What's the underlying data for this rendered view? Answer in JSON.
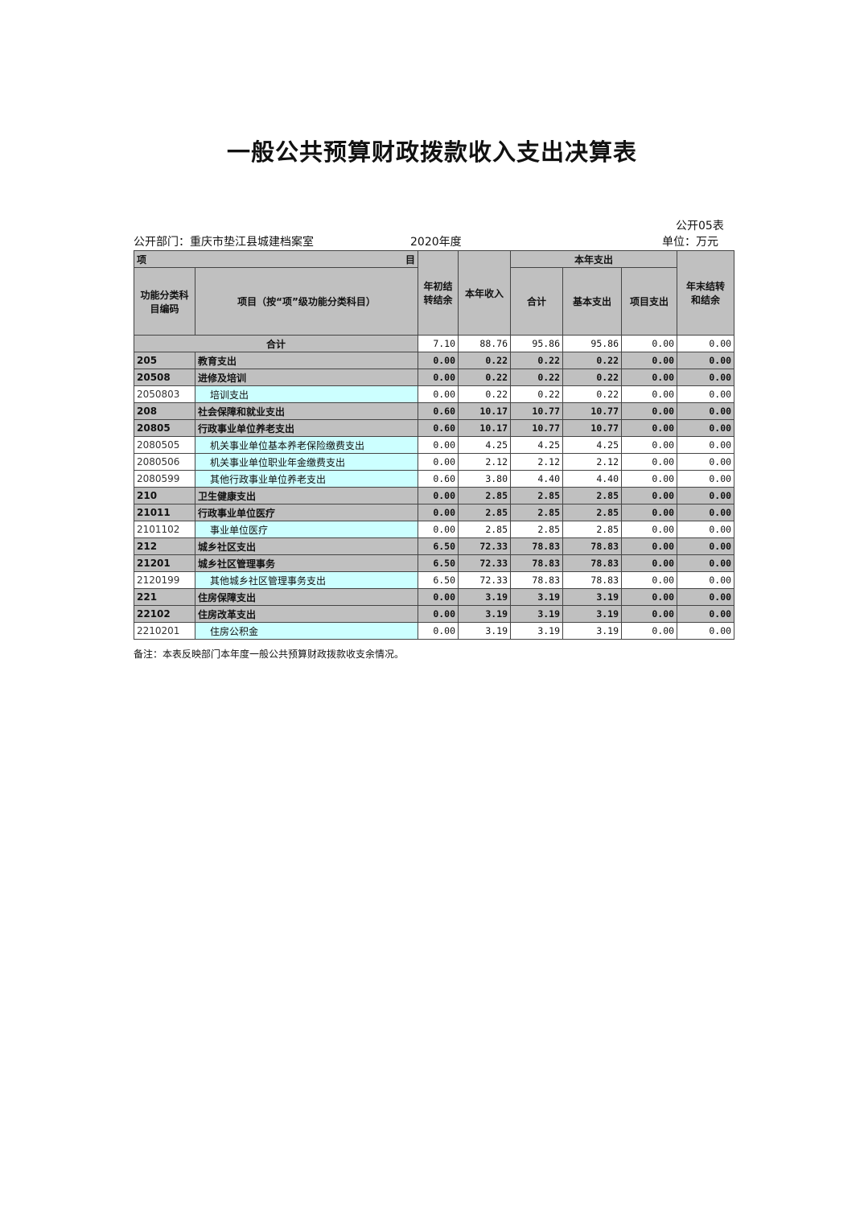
{
  "title": "一般公共预算财政拨款收入支出决算表",
  "table_no": "公开05表",
  "department": "公开部门：重庆市垫江县城建档案室",
  "year": "2020年度",
  "unit": "单位：万元",
  "headers": {
    "xiang": "项",
    "mu": "目",
    "code": "功能分类科目编码",
    "name": "项目（按“项”级功能分类科目）",
    "opening": "年初结转结余",
    "income": "本年收入",
    "expense_group": "本年支出",
    "total": "合计",
    "basic": "基本支出",
    "project": "项目支出",
    "closing": "年末结转和结余"
  },
  "total_row": {
    "label": "合计",
    "values": [
      "7.10",
      "88.76",
      "95.86",
      "95.86",
      "0.00",
      "0.00"
    ]
  },
  "rows": [
    {
      "level": "bold",
      "code": "205",
      "name": "教育支出",
      "values": [
        "0.00",
        "0.22",
        "0.22",
        "0.22",
        "0.00",
        "0.00"
      ]
    },
    {
      "level": "bold",
      "code": "20508",
      "name": "进修及培训",
      "values": [
        "0.00",
        "0.22",
        "0.22",
        "0.22",
        "0.00",
        "0.00"
      ]
    },
    {
      "level": "leaf",
      "code": "2050803",
      "name": "培训支出",
      "values": [
        "0.00",
        "0.22",
        "0.22",
        "0.22",
        "0.00",
        "0.00"
      ]
    },
    {
      "level": "bold",
      "code": "208",
      "name": "社会保障和就业支出",
      "values": [
        "0.60",
        "10.17",
        "10.77",
        "10.77",
        "0.00",
        "0.00"
      ]
    },
    {
      "level": "bold",
      "code": "20805",
      "name": "行政事业单位养老支出",
      "values": [
        "0.60",
        "10.17",
        "10.77",
        "10.77",
        "0.00",
        "0.00"
      ]
    },
    {
      "level": "leaf",
      "code": "2080505",
      "name": "机关事业单位基本养老保险缴费支出",
      "values": [
        "0.00",
        "4.25",
        "4.25",
        "4.25",
        "0.00",
        "0.00"
      ]
    },
    {
      "level": "leaf",
      "code": "2080506",
      "name": "机关事业单位职业年金缴费支出",
      "values": [
        "0.00",
        "2.12",
        "2.12",
        "2.12",
        "0.00",
        "0.00"
      ]
    },
    {
      "level": "leaf",
      "code": "2080599",
      "name": "其他行政事业单位养老支出",
      "values": [
        "0.60",
        "3.80",
        "4.40",
        "4.40",
        "0.00",
        "0.00"
      ]
    },
    {
      "level": "bold",
      "code": "210",
      "name": "卫生健康支出",
      "values": [
        "0.00",
        "2.85",
        "2.85",
        "2.85",
        "0.00",
        "0.00"
      ]
    },
    {
      "level": "bold",
      "code": "21011",
      "name": "行政事业单位医疗",
      "values": [
        "0.00",
        "2.85",
        "2.85",
        "2.85",
        "0.00",
        "0.00"
      ]
    },
    {
      "level": "leaf",
      "code": "2101102",
      "name": "事业单位医疗",
      "values": [
        "0.00",
        "2.85",
        "2.85",
        "2.85",
        "0.00",
        "0.00"
      ]
    },
    {
      "level": "bold",
      "code": "212",
      "name": "城乡社区支出",
      "values": [
        "6.50",
        "72.33",
        "78.83",
        "78.83",
        "0.00",
        "0.00"
      ]
    },
    {
      "level": "bold",
      "code": "21201",
      "name": "城乡社区管理事务",
      "values": [
        "6.50",
        "72.33",
        "78.83",
        "78.83",
        "0.00",
        "0.00"
      ]
    },
    {
      "level": "leaf",
      "code": "2120199",
      "name": "其他城乡社区管理事务支出",
      "values": [
        "6.50",
        "72.33",
        "78.83",
        "78.83",
        "0.00",
        "0.00"
      ]
    },
    {
      "level": "bold",
      "code": "221",
      "name": "住房保障支出",
      "values": [
        "0.00",
        "3.19",
        "3.19",
        "3.19",
        "0.00",
        "0.00"
      ]
    },
    {
      "level": "bold",
      "code": "22102",
      "name": "住房改革支出",
      "values": [
        "0.00",
        "3.19",
        "3.19",
        "3.19",
        "0.00",
        "0.00"
      ]
    },
    {
      "level": "leaf",
      "code": "2210201",
      "name": "住房公积金",
      "values": [
        "0.00",
        "3.19",
        "3.19",
        "3.19",
        "0.00",
        "0.00"
      ]
    }
  ],
  "note": "备注：本表反映部门本年度一般公共预算财政拨款收支余情况。"
}
